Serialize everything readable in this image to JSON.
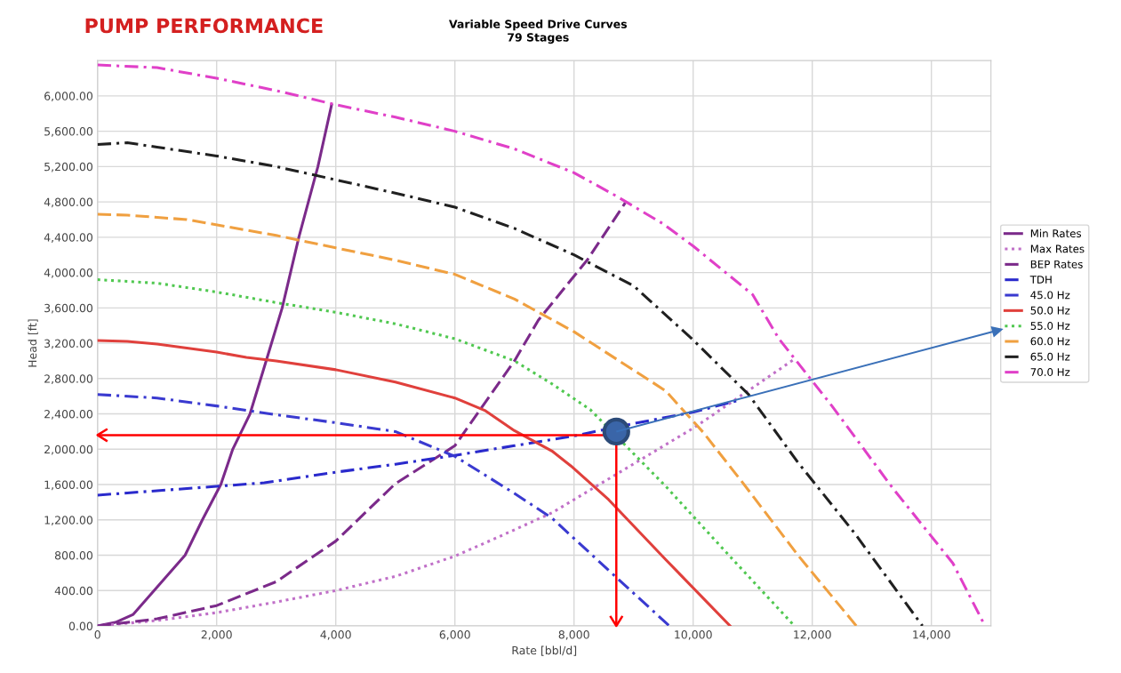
{
  "chart_data": {
    "type": "line",
    "title": "Variable Speed Drive Curves",
    "subtitle": "79 Stages",
    "annotations": [
      "PUMP PERFORMANCE"
    ],
    "xlabel": "Rate [bbl/d]",
    "ylabel": "Head [ft]",
    "xlim": [
      0,
      15000
    ],
    "ylim": [
      0,
      6400
    ],
    "xticks": [
      0,
      {
        "value": 2000,
        "label": "2,000"
      },
      {
        "value": 4000,
        "label": "4,000"
      },
      {
        "value": 6000,
        "label": "6,000"
      },
      {
        "value": 8000,
        "label": "8,000"
      },
      {
        "value": 10000,
        "label": "10,000"
      },
      {
        "value": 12000,
        "label": "12,000"
      },
      {
        "value": 14000,
        "label": "14,000"
      }
    ],
    "yticks": [
      {
        "value": 0,
        "label": "0.00"
      },
      {
        "value": 400,
        "label": "400.00"
      },
      {
        "value": 800,
        "label": "800.00"
      },
      {
        "value": 1200,
        "label": "1,200.00"
      },
      {
        "value": 1600,
        "label": "1,600.00"
      },
      {
        "value": 2000,
        "label": "2,000.00"
      },
      {
        "value": 2400,
        "label": "2,400.00"
      },
      {
        "value": 2800,
        "label": "2,800.00"
      },
      {
        "value": 3200,
        "label": "3,200.00"
      },
      {
        "value": 3600,
        "label": "3,600.00"
      },
      {
        "value": 4000,
        "label": "4,000.00"
      },
      {
        "value": 4400,
        "label": "4,400.00"
      },
      {
        "value": 4800,
        "label": "4,800.00"
      },
      {
        "value": 5200,
        "label": "5,200.00"
      },
      {
        "value": 5600,
        "label": "5,600.00"
      },
      {
        "value": 6000,
        "label": "6,000.00"
      }
    ],
    "grid": true,
    "legend": "right",
    "marker": "none",
    "series": [
      {
        "name": "Min Rates",
        "color": "#7b2a8a",
        "line_style": "solid",
        "x": [
          0,
          300,
          600,
          950,
          1470,
          1760,
          2070,
          2270,
          2560,
          2840,
          3100,
          3380,
          3700,
          3930
        ],
        "values": [
          0,
          40,
          130,
          400,
          800,
          1200,
          1600,
          2000,
          2400,
          3020,
          3600,
          4400,
          5200,
          5900
        ]
      },
      {
        "name": "Max Rates",
        "color": "#c070c8",
        "line_style": "dotted",
        "x": [
          0,
          1000,
          2000,
          3000,
          4000,
          5000,
          6000,
          6710,
          7630,
          10030,
          11700
        ],
        "values": [
          0,
          60,
          150,
          270,
          400,
          560,
          790,
          1000,
          1280,
          2250,
          3020
        ]
      },
      {
        "name": "BEP Rates",
        "color": "#7b2a8a",
        "line_style": "dashed",
        "x": [
          0,
          1000,
          2000,
          3000,
          4000,
          5000,
          6000,
          7000,
          7400,
          8230,
          8860
        ],
        "values": [
          0,
          80,
          230,
          500,
          960,
          1610,
          2040,
          3000,
          3460,
          4150,
          4790
        ]
      },
      {
        "name": "TDH",
        "color": "#2a2acc",
        "line_style": "dashdot",
        "x": [
          0,
          1000,
          2000,
          2800,
          4000,
          5000,
          6000,
          7000,
          8000,
          9000,
          10000,
          10740
        ],
        "values": [
          1480,
          1530,
          1580,
          1620,
          1740,
          1830,
          1930,
          2040,
          2150,
          2290,
          2420,
          2550
        ]
      },
      {
        "name": "45.0 Hz",
        "color": "#3a3ad0",
        "line_style": "dashdot",
        "x": [
          0,
          1000,
          2000,
          3000,
          4000,
          5000,
          6000,
          7000,
          7630,
          8580,
          9600
        ],
        "values": [
          2620,
          2580,
          2490,
          2390,
          2300,
          2200,
          1920,
          1500,
          1220,
          630,
          0
        ]
      },
      {
        "name": "50.0 Hz",
        "color": "#e0403c",
        "line_style": "solid",
        "x": [
          0,
          500,
          1000,
          2000,
          2500,
          3000,
          4000,
          5000,
          6000,
          6500,
          7000,
          7630,
          7950,
          8580,
          9540,
          10620
        ],
        "values": [
          3230,
          3220,
          3190,
          3100,
          3040,
          3000,
          2900,
          2760,
          2580,
          2440,
          2210,
          1980,
          1810,
          1430,
          750,
          0
        ]
      },
      {
        "name": "55.0 Hz",
        "color": "#50c850",
        "line_style": "dotted",
        "x": [
          0,
          1000,
          2000,
          3000,
          4000,
          5000,
          6000,
          7000,
          7630,
          8270,
          9540,
          10490,
          11700
        ],
        "values": [
          3920,
          3880,
          3780,
          3660,
          3550,
          3420,
          3250,
          3000,
          2740,
          2450,
          1580,
          880,
          0
        ]
      },
      {
        "name": "60.0 Hz",
        "color": "#f0a040",
        "line_style": "dashed",
        "x": [
          0,
          500,
          1500,
          3000,
          4000,
          5000,
          6000,
          7000,
          8000,
          9540,
          10170,
          10810,
          11760,
          12740
        ],
        "values": [
          4660,
          4650,
          4600,
          4420,
          4280,
          4140,
          3980,
          3700,
          3330,
          2660,
          2190,
          1640,
          800,
          0
        ]
      },
      {
        "name": "65.0 Hz",
        "color": "#202020",
        "line_style": "dashdot",
        "x": [
          0,
          500,
          1000,
          2000,
          3000,
          4000,
          5000,
          6000,
          7000,
          8000,
          9000,
          9980,
          10930,
          11760,
          12710,
          13850
        ],
        "values": [
          5450,
          5470,
          5420,
          5320,
          5200,
          5050,
          4900,
          4740,
          4500,
          4200,
          3850,
          3250,
          2620,
          1850,
          1050,
          0
        ]
      },
      {
        "name": "70.0 Hz",
        "color": "#e040c8",
        "line_style": "dashdot",
        "x": [
          0,
          1000,
          2000,
          3000,
          4000,
          5000,
          6000,
          7000,
          8000,
          8700,
          9500,
          10000,
          11000,
          11440,
          12330,
          13350,
          14360,
          14900
        ],
        "values": [
          6350,
          6320,
          6200,
          6060,
          5900,
          5760,
          5600,
          5400,
          5130,
          4870,
          4550,
          4300,
          3750,
          3250,
          2490,
          1560,
          710,
          0
        ]
      },
      {
        "type": "line",
        "color": "#ff0000",
        "line_style": "solid",
        "x": [
          8480,
          0
        ],
        "values": [
          2160,
          2160
        ]
      },
      {
        "type": "line",
        "color": "#ff0000",
        "line_style": "solid",
        "x": [
          8710,
          8710
        ],
        "values": [
          2060,
          0
        ]
      },
      {
        "type": "scatter",
        "color": "#3a65a8",
        "marker": "circle",
        "x": [
          8710
        ],
        "values": [
          2200
        ]
      }
    ]
  }
}
